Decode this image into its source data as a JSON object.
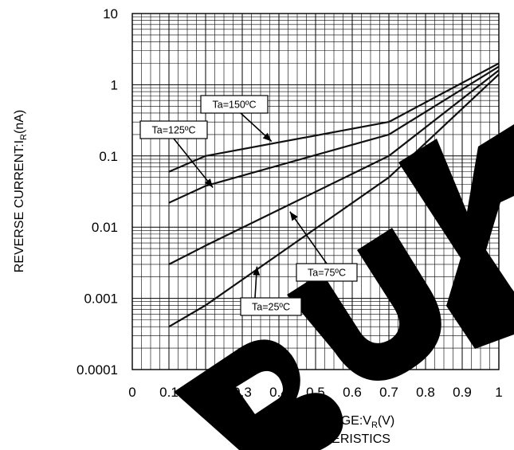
{
  "chart_data": {
    "type": "line",
    "title": "",
    "xlabel": "REVERSE VOLTAGE:V",
    "xlabel_sub": "R",
    "xlabel_suffix": "(V)",
    "ylabel": "REVERSE CURRENT:I",
    "ylabel_sub": "R",
    "ylabel_suffix": "(nA)",
    "caption_v": "V",
    "caption_v_sub": "R",
    "caption_dash": "-I",
    "caption_i_sub": "R",
    "caption_suffix": " CHARACTERISTICS",
    "x_ticks": [
      "0",
      "0.1",
      "0.2",
      "0.3",
      "0.4",
      "0.5",
      "0.6",
      "0.7",
      "0.8",
      "0.9",
      "1"
    ],
    "y_ticks": [
      "10",
      "1",
      "0.1",
      "0.01",
      "0.001",
      "0.0001"
    ],
    "xlim": [
      0,
      1
    ],
    "ylim": [
      0.0001,
      10
    ],
    "y_scale": "log",
    "grid": true,
    "series": [
      {
        "name": "Ta=150ºC",
        "x": [
          0.1,
          0.2,
          0.7,
          1.0
        ],
        "y": [
          0.06,
          0.1,
          0.3,
          2.0
        ]
      },
      {
        "name": "Ta=125ºC",
        "x": [
          0.1,
          0.2,
          0.7,
          1.0
        ],
        "y": [
          0.022,
          0.038,
          0.2,
          1.8
        ]
      },
      {
        "name": "Ta=75ºC",
        "x": [
          0.1,
          0.2,
          0.7,
          1.0
        ],
        "y": [
          0.003,
          0.0055,
          0.1,
          1.6
        ]
      },
      {
        "name": "Ta=25ºC",
        "x": [
          0.1,
          0.2,
          0.7,
          1.0
        ],
        "y": [
          0.0004,
          0.0008,
          0.05,
          1.4
        ]
      }
    ],
    "annotations": [
      {
        "text": "Ta=150ºC",
        "target": [
          0.38,
          0.16
        ]
      },
      {
        "text": "Ta=125ºC",
        "target": [
          0.22,
          0.036
        ]
      },
      {
        "text": "Ta=75ºC",
        "target": [
          0.43,
          0.0165
        ]
      },
      {
        "text": "Ta=25ºC",
        "target": [
          0.34,
          0.0028
        ]
      }
    ],
    "watermark": "BUY",
    "watermark_color": "#000000"
  }
}
